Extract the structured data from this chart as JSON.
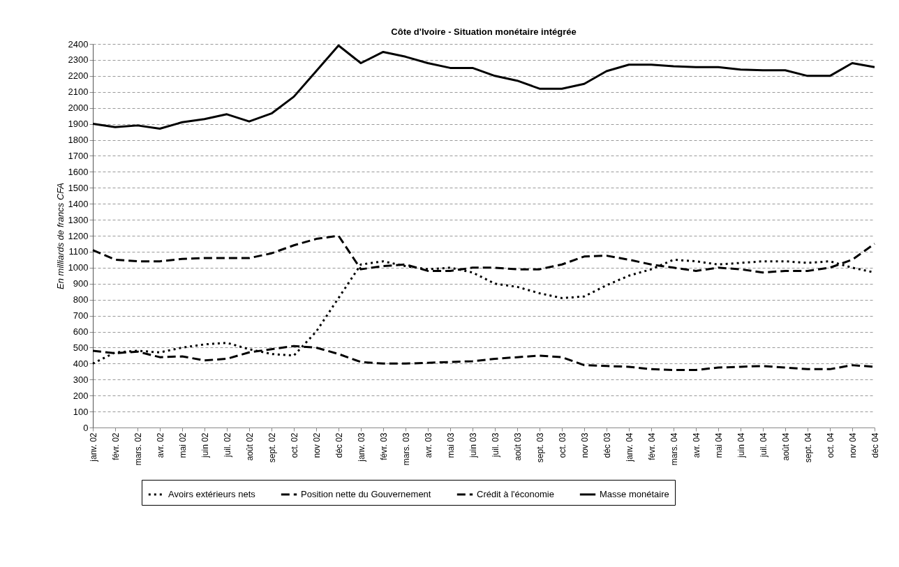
{
  "chart_data": {
    "type": "line",
    "title": "Côte d'Ivoire - Situation monétaire intégrée",
    "ylabel": "En milliards de francs CFA",
    "categories": [
      "janv. 02",
      "févr. 02",
      "mars. 02",
      "avr. 02",
      "mai 02",
      "juin 02",
      "juil. 02",
      "août 02",
      "sept. 02",
      "oct. 02",
      "nov 02",
      "déc 02",
      "janv. 03",
      "févr. 03",
      "mars. 03",
      "avr. 03",
      "mai 03",
      "juin 03",
      "juil. 03",
      "août 03",
      "sept. 03",
      "oct. 03",
      "nov 03",
      "déc 03",
      "janv. 04",
      "févr. 04",
      "mars. 04",
      "avr. 04",
      "mai 04",
      "juin 04",
      "juil. 04",
      "août 04",
      "sept. 04",
      "oct. 04",
      "nov 04",
      "déc 04"
    ],
    "series": [
      {
        "name": "Avoirs extérieurs nets",
        "color": "#000000",
        "line_style": "dotted",
        "values": [
          400,
          470,
          480,
          470,
          500,
          520,
          530,
          490,
          460,
          450,
          600,
          810,
          1020,
          1040,
          1010,
          990,
          1000,
          970,
          900,
          880,
          840,
          810,
          820,
          890,
          950,
          990,
          1050,
          1040,
          1020,
          1030,
          1040,
          1040,
          1030,
          1040,
          1000,
          970
        ]
      },
      {
        "name": "Position nette du Gouvernement",
        "color": "#000000",
        "line_style": "dashed",
        "values": [
          480,
          465,
          475,
          440,
          445,
          420,
          430,
          470,
          490,
          510,
          500,
          460,
          410,
          400,
          400,
          405,
          410,
          415,
          430,
          440,
          450,
          440,
          390,
          385,
          380,
          365,
          360,
          360,
          375,
          380,
          385,
          375,
          365,
          365,
          390,
          380
        ]
      },
      {
        "name": "Crédit à l'économie",
        "color": "#000000",
        "line_style": "dashed",
        "values": [
          1110,
          1050,
          1040,
          1040,
          1055,
          1060,
          1060,
          1060,
          1090,
          1140,
          1180,
          1200,
          990,
          1010,
          1020,
          980,
          980,
          1000,
          1000,
          990,
          990,
          1020,
          1070,
          1075,
          1050,
          1020,
          1000,
          980,
          1000,
          990,
          970,
          980,
          980,
          1000,
          1050,
          1150
        ]
      },
      {
        "name": "Masse monétaire",
        "color": "#000000",
        "line_style": "solid",
        "values": [
          1900,
          1880,
          1890,
          1870,
          1910,
          1930,
          1960,
          1915,
          1965,
          2070,
          2230,
          2390,
          2280,
          2350,
          2320,
          2280,
          2250,
          2250,
          2200,
          2170,
          2120,
          2120,
          2150,
          2230,
          2270,
          2270,
          2260,
          2255,
          2255,
          2240,
          2235,
          2235,
          2200,
          2200,
          2280,
          2255
        ]
      }
    ],
    "ylim": [
      0,
      2400
    ],
    "yticks": [
      0,
      100,
      200,
      300,
      400,
      500,
      600,
      700,
      800,
      900,
      1000,
      1100,
      1200,
      1300,
      1400,
      1500,
      1600,
      1700,
      1800,
      1900,
      2000,
      2100,
      2200,
      2300,
      2400
    ],
    "grid": "y",
    "legend": "bottom",
    "marker": "none"
  }
}
